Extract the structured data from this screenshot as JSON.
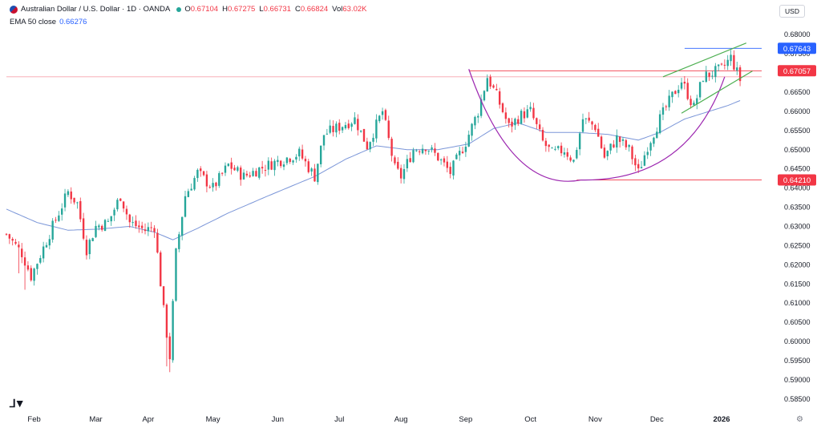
{
  "header": {
    "symbol": "Australian Dollar / U.S. Dollar · 1D · OANDA",
    "open_label": "O",
    "open": "0.67104",
    "high_label": "H",
    "high": "0.67275",
    "low_label": "L",
    "low": "0.66731",
    "close_label": "C",
    "close": "0.66824",
    "vol_label": "Vol",
    "vol": "63.02K"
  },
  "ema": {
    "label": "EMA 50 close",
    "value": "0.66276"
  },
  "currency_button": "USD",
  "colors": {
    "up": "#26a69a",
    "down": "#f23645",
    "ema": "#7b96d8",
    "cup": "#9c27b0",
    "channel": "#4caf50",
    "resistance": "#2962ff",
    "level": "#f23645"
  },
  "chart_data": {
    "type": "candlestick",
    "symbol": "AUDUSD",
    "timeframe": "1D",
    "ylim": [
      0.5835,
      0.6815
    ],
    "y_ticks": [
      0.585,
      0.59,
      0.595,
      0.6,
      0.605,
      0.61,
      0.615,
      0.62,
      0.625,
      0.63,
      0.635,
      0.64,
      0.645,
      0.65,
      0.655,
      0.66,
      0.665,
      0.67,
      0.675,
      0.68
    ],
    "y_tick_labels": [
      "0.58500",
      "0.59000",
      "0.59500",
      "0.60000",
      "0.60500",
      "0.61000",
      "0.61500",
      "0.62000",
      "0.62500",
      "0.63000",
      "0.63500",
      "0.64000",
      "0.64500",
      "0.65000",
      "0.65500",
      "0.66000",
      "0.66500",
      "0.67000",
      "0.67500",
      "0.68000"
    ],
    "x_labels": [
      "Feb",
      "Mar",
      "Apr",
      "May",
      "Jun",
      "Jul",
      "Aug",
      "Sep",
      "Oct",
      "Nov",
      "Dec",
      "2026"
    ],
    "x_label_day": [
      9,
      29,
      46,
      67,
      88,
      108,
      128,
      149,
      170,
      191,
      211,
      232
    ],
    "day_range": [
      0,
      245
    ],
    "price_labels": [
      {
        "label": "0.67643",
        "value": 0.67643,
        "color": "#2962ff"
      },
      {
        "label": "0.67057",
        "value": 0.67057,
        "color": "#f23645"
      },
      {
        "label": "0.64210",
        "value": 0.6421,
        "color": "#f23645"
      }
    ],
    "key_points": [
      {
        "day": 0,
        "close": 0.628
      },
      {
        "day": 5,
        "close": 0.623
      },
      {
        "day": 8,
        "close": 0.617
      },
      {
        "day": 15,
        "close": 0.63
      },
      {
        "day": 20,
        "close": 0.639
      },
      {
        "day": 23,
        "close": 0.636
      },
      {
        "day": 26,
        "close": 0.624
      },
      {
        "day": 29,
        "close": 0.63
      },
      {
        "day": 33,
        "close": 0.631
      },
      {
        "day": 37,
        "close": 0.638
      },
      {
        "day": 40,
        "close": 0.631
      },
      {
        "day": 45,
        "close": 0.629
      },
      {
        "day": 48,
        "close": 0.63
      },
      {
        "day": 51,
        "close": 0.608
      },
      {
        "day": 53,
        "close": 0.596
      },
      {
        "day": 55,
        "close": 0.623
      },
      {
        "day": 58,
        "close": 0.638
      },
      {
        "day": 62,
        "close": 0.644
      },
      {
        "day": 67,
        "close": 0.64
      },
      {
        "day": 72,
        "close": 0.646
      },
      {
        "day": 77,
        "close": 0.643
      },
      {
        "day": 82,
        "close": 0.645
      },
      {
        "day": 88,
        "close": 0.647
      },
      {
        "day": 95,
        "close": 0.649
      },
      {
        "day": 100,
        "close": 0.643
      },
      {
        "day": 103,
        "close": 0.654
      },
      {
        "day": 108,
        "close": 0.656
      },
      {
        "day": 113,
        "close": 0.658
      },
      {
        "day": 117,
        "close": 0.651
      },
      {
        "day": 122,
        "close": 0.66
      },
      {
        "day": 126,
        "close": 0.645
      },
      {
        "day": 128,
        "close": 0.643
      },
      {
        "day": 132,
        "close": 0.65
      },
      {
        "day": 136,
        "close": 0.651
      },
      {
        "day": 140,
        "close": 0.648
      },
      {
        "day": 144,
        "close": 0.644
      },
      {
        "day": 149,
        "close": 0.652
      },
      {
        "day": 153,
        "close": 0.66
      },
      {
        "day": 156,
        "close": 0.669
      },
      {
        "day": 159,
        "close": 0.664
      },
      {
        "day": 163,
        "close": 0.656
      },
      {
        "day": 167,
        "close": 0.659
      },
      {
        "day": 170,
        "close": 0.66
      },
      {
        "day": 174,
        "close": 0.652
      },
      {
        "day": 177,
        "close": 0.649
      },
      {
        "day": 181,
        "close": 0.65
      },
      {
        "day": 184,
        "close": 0.647
      },
      {
        "day": 187,
        "close": 0.658
      },
      {
        "day": 191,
        "close": 0.656
      },
      {
        "day": 194,
        "close": 0.648
      },
      {
        "day": 198,
        "close": 0.653
      },
      {
        "day": 202,
        "close": 0.65
      },
      {
        "day": 205,
        "close": 0.644
      },
      {
        "day": 208,
        "close": 0.651
      },
      {
        "day": 212,
        "close": 0.658
      },
      {
        "day": 216,
        "close": 0.664
      },
      {
        "day": 219,
        "close": 0.668
      },
      {
        "day": 223,
        "close": 0.661
      },
      {
        "day": 226,
        "close": 0.669
      },
      {
        "day": 229,
        "close": 0.67
      },
      {
        "day": 232,
        "close": 0.671
      },
      {
        "day": 235,
        "close": 0.674
      },
      {
        "day": 238,
        "close": 0.6682
      }
    ],
    "ema_points": [
      {
        "day": 0,
        "value": 0.6345
      },
      {
        "day": 10,
        "value": 0.631
      },
      {
        "day": 20,
        "value": 0.629
      },
      {
        "day": 30,
        "value": 0.6293
      },
      {
        "day": 40,
        "value": 0.63
      },
      {
        "day": 48,
        "value": 0.6285
      },
      {
        "day": 54,
        "value": 0.6265
      },
      {
        "day": 62,
        "value": 0.6295
      },
      {
        "day": 72,
        "value": 0.6335
      },
      {
        "day": 85,
        "value": 0.638
      },
      {
        "day": 100,
        "value": 0.643
      },
      {
        "day": 110,
        "value": 0.6475
      },
      {
        "day": 120,
        "value": 0.651
      },
      {
        "day": 130,
        "value": 0.65
      },
      {
        "day": 140,
        "value": 0.65
      },
      {
        "day": 150,
        "value": 0.6515
      },
      {
        "day": 158,
        "value": 0.6555
      },
      {
        "day": 166,
        "value": 0.657
      },
      {
        "day": 175,
        "value": 0.6545
      },
      {
        "day": 185,
        "value": 0.6545
      },
      {
        "day": 195,
        "value": 0.654
      },
      {
        "day": 205,
        "value": 0.6525
      },
      {
        "day": 212,
        "value": 0.6545
      },
      {
        "day": 220,
        "value": 0.658
      },
      {
        "day": 228,
        "value": 0.66
      },
      {
        "day": 234,
        "value": 0.6615
      },
      {
        "day": 238,
        "value": 0.6628
      }
    ],
    "annotations": {
      "cup": {
        "from_day": 150,
        "to_day": 223,
        "top": 0.671,
        "bottom": 0.6421
      },
      "channel": [
        {
          "day1": 213,
          "v1": 0.669,
          "day2": 240,
          "v2": 0.6778
        },
        {
          "day1": 219,
          "v1": 0.6595,
          "day2": 242,
          "v2": 0.6705
        }
      ],
      "hlines": [
        {
          "value": 0.67643,
          "from_day": 220,
          "to_day": 245,
          "color": "#2962ff"
        },
        {
          "value": 0.67057,
          "from_day": 150,
          "to_day": 245,
          "color": "#f23645"
        },
        {
          "value": 0.669,
          "from_day": 0,
          "to_day": 245,
          "color": "#f7a3ad"
        },
        {
          "value": 0.6421,
          "from_day": 185,
          "to_day": 245,
          "color": "#f23645"
        }
      ]
    }
  }
}
